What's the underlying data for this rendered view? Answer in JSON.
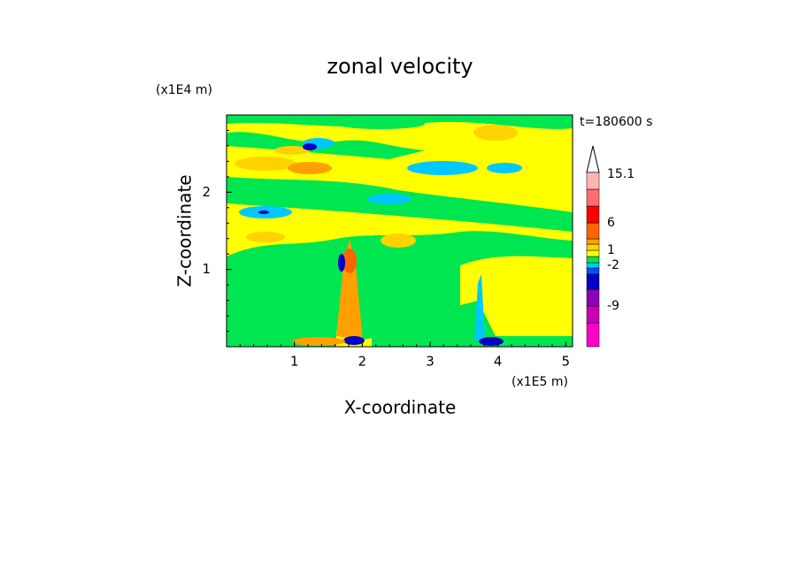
{
  "chart_data": {
    "type": "contour",
    "title": "zonal velocity",
    "time_label": "t=180600 s",
    "x_label": "X-coordinate",
    "y_label": "Z-coordinate",
    "x_unit_label": "(x1E5 m)",
    "y_unit_label": "(x1E4 m)",
    "xlim": [
      0,
      5.1
    ],
    "xticks": [
      1,
      2,
      3,
      4,
      5
    ],
    "ylim": [
      0,
      3
    ],
    "yticks": [
      1,
      2
    ],
    "colorbar": {
      "colors": [
        "#ff00c8",
        "#c800b4",
        "#8c00b4",
        "#0000c8",
        "#0050ff",
        "#00c8ff",
        "#00e650",
        "#ffff00",
        "#ffd200",
        "#ffa000",
        "#ff6400",
        "#ff0000",
        "#ff6e6e",
        "#ffb4b4"
      ],
      "labels": [
        15.1,
        6,
        1,
        -2,
        -9
      ]
    }
  }
}
